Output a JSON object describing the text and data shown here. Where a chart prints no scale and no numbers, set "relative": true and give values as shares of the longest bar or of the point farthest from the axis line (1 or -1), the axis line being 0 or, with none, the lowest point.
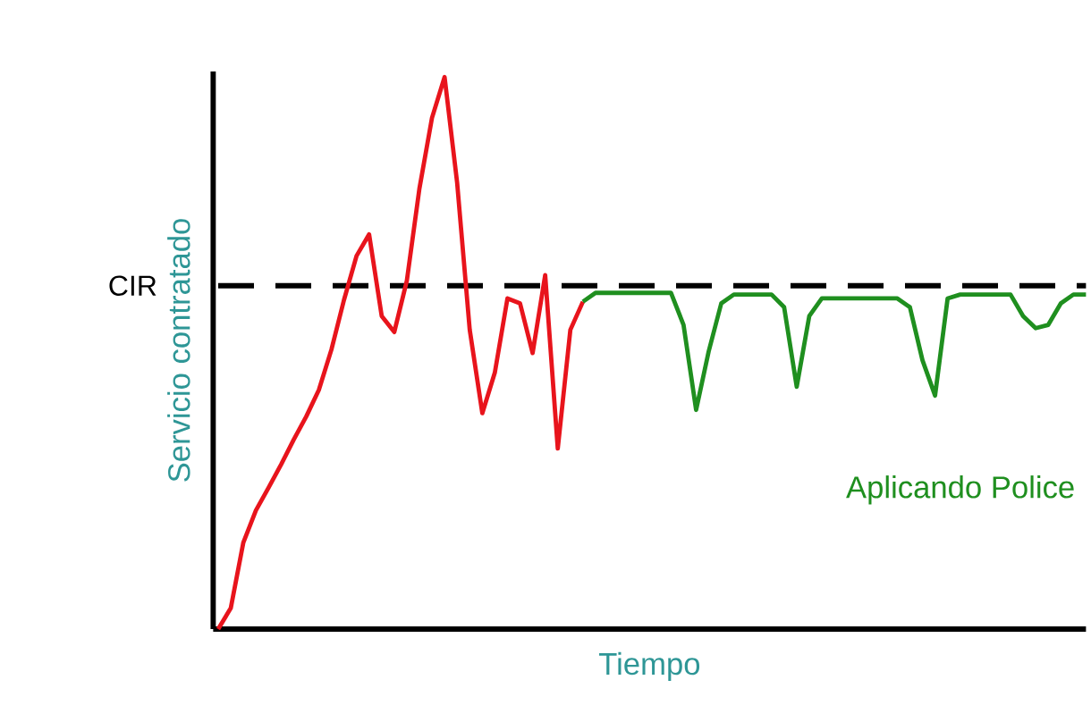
{
  "chart_data": {
    "type": "line",
    "relative": true,
    "xlabel": "Tiempo",
    "ylabel": "Servicio contratado",
    "line_style": "solid",
    "marker": "none",
    "categories": [
      null,
      null,
      null,
      null,
      null,
      null,
      null,
      null,
      null,
      null,
      null,
      null,
      null,
      null,
      null,
      null,
      null,
      null,
      null,
      null,
      null,
      null,
      null,
      null,
      null,
      null,
      null,
      null,
      null,
      null,
      null,
      null,
      null,
      null,
      null,
      null,
      null,
      null,
      null,
      null,
      null,
      null,
      null,
      null,
      null,
      null,
      null,
      null,
      null,
      null,
      null,
      null,
      null,
      null,
      null,
      null,
      null,
      null,
      null,
      null,
      null,
      null,
      null,
      null,
      null,
      null,
      null,
      null,
      null,
      null
    ],
    "series": [
      {
        "color": "#e8141c",
        "values": [
          0,
          0.038,
          0.157,
          0.215,
          0.256,
          0.298,
          0.343,
          0.385,
          0.433,
          0.506,
          0.596,
          0.676,
          0.715,
          0.567,
          0.538,
          0.631,
          0.798,
          0.926,
          1,
          0.808,
          0.542,
          0.391,
          0.465,
          0.599,
          0.59,
          0.5,
          0.641,
          0.327,
          0.542,
          0.593,
          null,
          null,
          null,
          null,
          null,
          null,
          null,
          null,
          null,
          null,
          null,
          null,
          null,
          null,
          null,
          null,
          null,
          null,
          null,
          null,
          null,
          null,
          null,
          null,
          null,
          null,
          null,
          null,
          null,
          null,
          null,
          null,
          null,
          null,
          null,
          null,
          null,
          null,
          null,
          null
        ]
      },
      {
        "name": "Aplicando Police",
        "color": "#1f8f1f",
        "values": [
          null,
          null,
          null,
          null,
          null,
          null,
          null,
          null,
          null,
          null,
          null,
          null,
          null,
          null,
          null,
          null,
          null,
          null,
          null,
          null,
          null,
          null,
          null,
          null,
          null,
          null,
          null,
          null,
          null,
          0.593,
          0.609,
          0.609,
          0.609,
          0.609,
          0.609,
          0.609,
          0.609,
          0.551,
          0.397,
          0.503,
          0.59,
          0.606,
          0.606,
          0.606,
          0.606,
          0.583,
          0.439,
          0.567,
          0.599,
          0.599,
          0.599,
          0.599,
          0.599,
          0.599,
          0.599,
          0.583,
          0.487,
          0.423,
          0.599,
          0.606,
          0.606,
          0.606,
          0.606,
          0.606,
          0.567,
          0.545,
          0.551,
          0.59,
          0.606,
          0.606
        ]
      }
    ],
    "ref_lines": [
      {
        "axis": "y",
        "value": 0.622,
        "label": "CIR",
        "line_style": "dashed",
        "color": "#000000"
      }
    ]
  }
}
